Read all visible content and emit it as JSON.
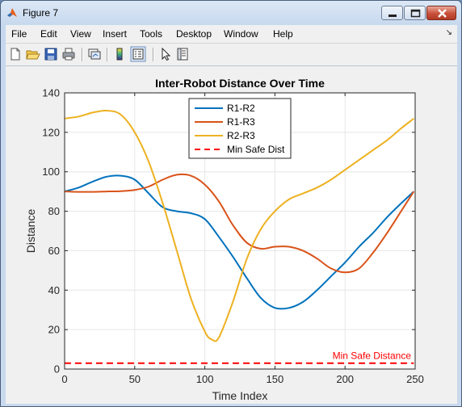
{
  "window": {
    "title": "Figure 7"
  },
  "menubar": {
    "items": [
      "File",
      "Edit",
      "View",
      "Insert",
      "Tools",
      "Desktop",
      "Window",
      "Help"
    ]
  },
  "toolbar": {
    "buttons": [
      "new-figure-icon",
      "open-file-icon",
      "save-icon",
      "print-icon",
      "link-plot-icon",
      "colorbar-icon",
      "legend-icon",
      "pointer-icon",
      "property-inspector-icon"
    ]
  },
  "colors": {
    "r1r2": "#0072bd",
    "r1r3": "#d95319",
    "r2r3": "#edb120",
    "safe": "#ff0000"
  },
  "chart_data": {
    "type": "line",
    "title": "Inter-Robot Distance Over Time",
    "xlabel": "Time Index",
    "ylabel": "Distance",
    "xlim": [
      0,
      250
    ],
    "ylim": [
      0,
      140
    ],
    "xticks": [
      0,
      50,
      100,
      150,
      200,
      250
    ],
    "yticks": [
      0,
      20,
      40,
      60,
      80,
      100,
      120,
      140
    ],
    "grid": true,
    "legend_position": "top-center",
    "annotation": "Min Safe Distance",
    "series": [
      {
        "name": "R1-R2",
        "color": "#0072bd",
        "style": "solid",
        "x": [
          0,
          10,
          20,
          30,
          40,
          50,
          60,
          70,
          80,
          90,
          100,
          110,
          120,
          130,
          140,
          150,
          160,
          170,
          180,
          190,
          200,
          210,
          220,
          230,
          240,
          249
        ],
        "y": [
          90,
          92,
          95,
          97.5,
          98,
          96,
          89,
          82,
          80,
          79,
          76,
          67,
          57,
          46,
          36,
          31,
          31,
          34,
          40,
          47,
          54,
          62,
          69,
          77,
          84,
          90
        ]
      },
      {
        "name": "R1-R3",
        "color": "#d95319",
        "style": "solid",
        "x": [
          0,
          10,
          20,
          30,
          40,
          50,
          60,
          70,
          80,
          90,
          100,
          110,
          120,
          130,
          140,
          150,
          160,
          170,
          180,
          190,
          200,
          210,
          220,
          230,
          240,
          249
        ],
        "y": [
          90,
          89.8,
          89.8,
          90,
          90.2,
          90.8,
          92.5,
          96,
          98.5,
          98,
          93.5,
          85,
          73,
          64,
          61,
          62,
          62,
          60,
          56,
          51,
          49,
          51,
          59,
          69,
          80,
          90
        ]
      },
      {
        "name": "R2-R3",
        "color": "#edb120",
        "style": "solid",
        "x": [
          0,
          10,
          20,
          30,
          40,
          50,
          60,
          70,
          80,
          90,
          100,
          105,
          110,
          120,
          130,
          140,
          150,
          160,
          170,
          180,
          190,
          200,
          210,
          220,
          230,
          240,
          249
        ],
        "y": [
          127,
          128,
          130,
          131,
          129,
          120,
          105,
          84,
          60,
          36,
          19,
          15,
          16,
          34,
          56,
          71,
          80,
          86,
          89,
          92,
          96,
          101,
          106,
          111,
          116,
          122,
          127
        ]
      },
      {
        "name": "Min Safe Dist",
        "color": "#ff0000",
        "style": "dashed",
        "x": [
          0,
          249
        ],
        "y": [
          3,
          3
        ]
      }
    ]
  }
}
